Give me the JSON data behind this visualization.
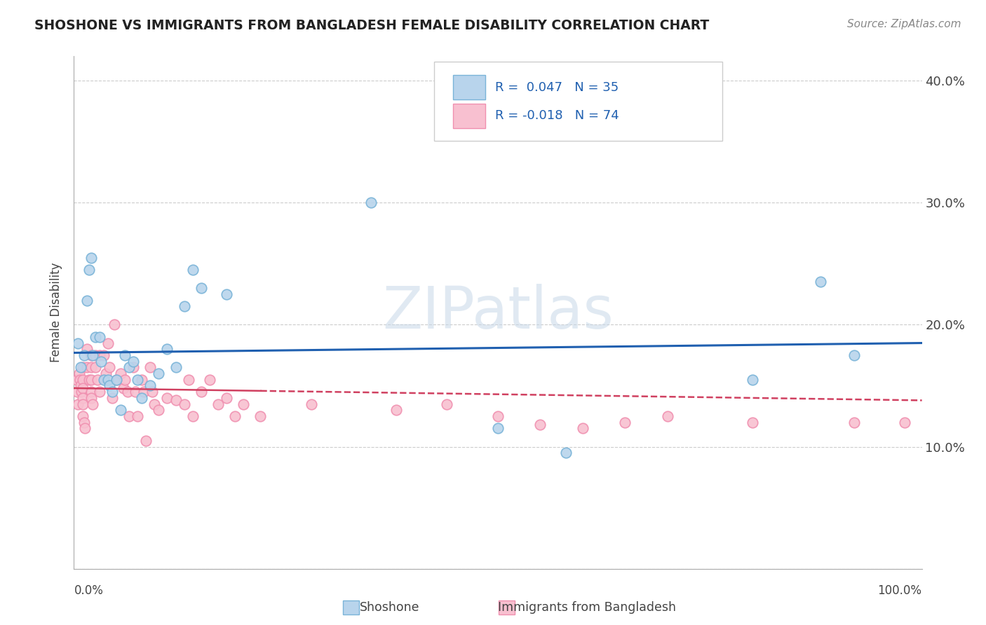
{
  "title": "SHOSHONE VS IMMIGRANTS FROM BANGLADESH FEMALE DISABILITY CORRELATION CHART",
  "source": "Source: ZipAtlas.com",
  "ylabel": "Female Disability",
  "watermark": "ZIPatlas",
  "shoshone_color": "#7ab4d8",
  "shoshone_fill": "#b8d4ec",
  "bangladesh_color": "#f090b0",
  "bangladesh_fill": "#f8c0d0",
  "trend_shoshone": "#2060b0",
  "trend_bangladesh": "#d04060",
  "xlim": [
    0.0,
    1.0
  ],
  "ylim": [
    0.0,
    0.42
  ],
  "yticks": [
    0.0,
    0.1,
    0.2,
    0.3,
    0.4
  ],
  "ytick_labels": [
    "",
    "10.0%",
    "20.0%",
    "30.0%",
    "40.0%"
  ],
  "shoshone_x": [
    0.005,
    0.008,
    0.012,
    0.015,
    0.018,
    0.02,
    0.022,
    0.025,
    0.03,
    0.032,
    0.035,
    0.04,
    0.042,
    0.045,
    0.05,
    0.055,
    0.06,
    0.065,
    0.07,
    0.075,
    0.08,
    0.09,
    0.1,
    0.11,
    0.12,
    0.13,
    0.14,
    0.15,
    0.18,
    0.35,
    0.5,
    0.58,
    0.8,
    0.88,
    0.92
  ],
  "shoshone_y": [
    0.185,
    0.165,
    0.175,
    0.22,
    0.245,
    0.255,
    0.175,
    0.19,
    0.19,
    0.17,
    0.155,
    0.155,
    0.15,
    0.145,
    0.155,
    0.13,
    0.175,
    0.165,
    0.17,
    0.155,
    0.14,
    0.15,
    0.16,
    0.18,
    0.165,
    0.215,
    0.245,
    0.23,
    0.225,
    0.3,
    0.115,
    0.095,
    0.155,
    0.235,
    0.175
  ],
  "bangladesh_x": [
    0.003,
    0.004,
    0.005,
    0.006,
    0.007,
    0.008,
    0.009,
    0.01,
    0.01,
    0.01,
    0.01,
    0.01,
    0.01,
    0.012,
    0.013,
    0.015,
    0.015,
    0.018,
    0.02,
    0.02,
    0.02,
    0.02,
    0.02,
    0.022,
    0.025,
    0.025,
    0.028,
    0.03,
    0.03,
    0.035,
    0.038,
    0.04,
    0.042,
    0.045,
    0.048,
    0.05,
    0.055,
    0.058,
    0.06,
    0.063,
    0.065,
    0.07,
    0.072,
    0.075,
    0.08,
    0.082,
    0.085,
    0.09,
    0.092,
    0.095,
    0.1,
    0.11,
    0.12,
    0.13,
    0.135,
    0.14,
    0.15,
    0.16,
    0.17,
    0.18,
    0.19,
    0.2,
    0.22,
    0.28,
    0.38,
    0.44,
    0.5,
    0.55,
    0.6,
    0.65,
    0.7,
    0.8,
    0.92,
    0.98
  ],
  "bangladesh_y": [
    0.155,
    0.145,
    0.135,
    0.16,
    0.155,
    0.15,
    0.145,
    0.165,
    0.155,
    0.148,
    0.14,
    0.135,
    0.125,
    0.12,
    0.115,
    0.18,
    0.165,
    0.155,
    0.175,
    0.165,
    0.155,
    0.145,
    0.14,
    0.135,
    0.175,
    0.165,
    0.155,
    0.175,
    0.145,
    0.175,
    0.16,
    0.185,
    0.165,
    0.14,
    0.2,
    0.155,
    0.16,
    0.148,
    0.155,
    0.145,
    0.125,
    0.165,
    0.145,
    0.125,
    0.155,
    0.145,
    0.105,
    0.165,
    0.145,
    0.135,
    0.13,
    0.14,
    0.138,
    0.135,
    0.155,
    0.125,
    0.145,
    0.155,
    0.135,
    0.14,
    0.125,
    0.135,
    0.125,
    0.135,
    0.13,
    0.135,
    0.125,
    0.118,
    0.115,
    0.12,
    0.125,
    0.12,
    0.12,
    0.12
  ]
}
